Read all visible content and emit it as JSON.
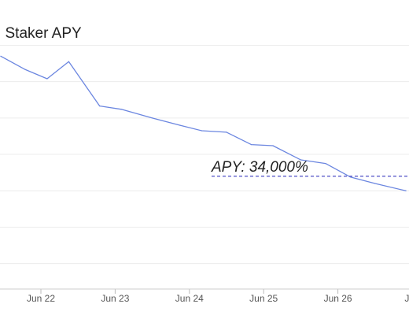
{
  "chart_data": {
    "type": "line",
    "title": "Staker APY",
    "title_visible_text": "l Staker APY",
    "xlabel": "",
    "ylabel": "",
    "x_tick_labels": [
      "Jun 22",
      "Jun 23",
      "Jun 24",
      "Jun 25",
      "Jun 26",
      "Jun"
    ],
    "grid": true,
    "series": [
      {
        "color": "#6b86e0",
        "points": [
          {
            "x": "2021-06-21T11:00",
            "y": 67000
          },
          {
            "x": "2021-06-21T19:00",
            "y": 63300
          },
          {
            "x": "2021-06-22T02:00",
            "y": 60800
          },
          {
            "x": "2021-06-22T09:00",
            "y": 65500
          },
          {
            "x": "2021-06-22T19:00",
            "y": 53300
          },
          {
            "x": "2021-06-23T02:00",
            "y": 52400
          },
          {
            "x": "2021-06-23T12:00",
            "y": 50000
          },
          {
            "x": "2021-06-23T21:00",
            "y": 48000
          },
          {
            "x": "2021-06-24T04:00",
            "y": 46500
          },
          {
            "x": "2021-06-24T12:00",
            "y": 46100
          },
          {
            "x": "2021-06-24T20:00",
            "y": 42700
          },
          {
            "x": "2021-06-25T03:00",
            "y": 42400
          },
          {
            "x": "2021-06-25T12:00",
            "y": 38500
          },
          {
            "x": "2021-06-25T20:00",
            "y": 37500
          },
          {
            "x": "2021-06-26T04:00",
            "y": 33800
          },
          {
            "x": "2021-06-26T12:00",
            "y": 32000
          },
          {
            "x": "2021-06-26T22:00",
            "y": 30000
          }
        ]
      }
    ],
    "annotations": [
      {
        "text": "APY: 34,000%",
        "y": 34000,
        "color": "#6b6bcf",
        "style": "dashed"
      }
    ],
    "gridline_values": [
      10000,
      20000,
      30000,
      40000,
      50000,
      60000,
      70000
    ]
  }
}
